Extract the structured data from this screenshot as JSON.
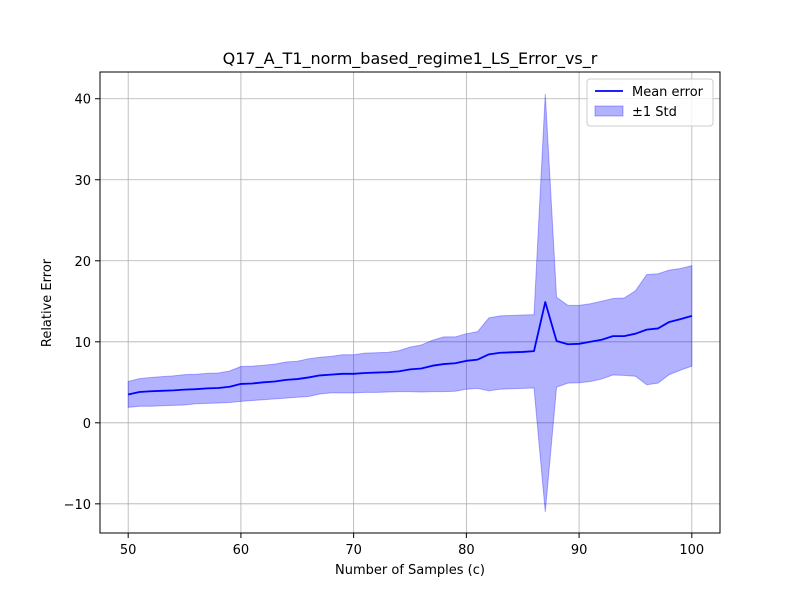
{
  "chart_data": {
    "type": "line",
    "title": "Q17_A_T1_norm_based_regime1_LS_Error_vs_r",
    "xlabel": "Number of Samples (c)",
    "ylabel": "Relative Error",
    "xlim": [
      47.5,
      102.5
    ],
    "ylim": [
      -13.6,
      43.3
    ],
    "xticks": [
      50,
      60,
      70,
      80,
      90,
      100
    ],
    "yticks": [
      -10,
      0,
      10,
      20,
      30,
      40
    ],
    "xtick_labels": [
      "50",
      "60",
      "70",
      "80",
      "90",
      "100"
    ],
    "ytick_labels": [
      "−10",
      "0",
      "10",
      "20",
      "30",
      "40"
    ],
    "grid": true,
    "legend_position": "top-right",
    "x": [
      50,
      51,
      52,
      53,
      54,
      55,
      56,
      57,
      58,
      59,
      60,
      61,
      62,
      63,
      64,
      65,
      66,
      67,
      68,
      69,
      70,
      71,
      72,
      73,
      74,
      75,
      76,
      77,
      78,
      79,
      80,
      81,
      82,
      83,
      84,
      85,
      86,
      87,
      88,
      89,
      90,
      91,
      92,
      93,
      94,
      95,
      96,
      97,
      98,
      99,
      100
    ],
    "series": [
      {
        "name": "Mean error",
        "kind": "line",
        "color": "#0000ff",
        "values": [
          3.5,
          3.8,
          3.9,
          3.95,
          4.0,
          4.1,
          4.15,
          4.25,
          4.3,
          4.45,
          4.8,
          4.85,
          5.0,
          5.1,
          5.3,
          5.4,
          5.6,
          5.85,
          5.95,
          6.05,
          6.05,
          6.15,
          6.2,
          6.25,
          6.35,
          6.6,
          6.7,
          7.05,
          7.25,
          7.35,
          7.65,
          7.8,
          8.45,
          8.65,
          8.7,
          8.75,
          8.85,
          14.9,
          10.1,
          9.7,
          9.75,
          10.0,
          10.25,
          10.7,
          10.7,
          11.0,
          11.5,
          11.65,
          12.45,
          12.8,
          13.2
        ]
      },
      {
        "name": "±1 Std",
        "kind": "band",
        "color": "#0000ff",
        "lower": [
          1.9,
          2.05,
          2.05,
          2.1,
          2.15,
          2.2,
          2.35,
          2.4,
          2.45,
          2.5,
          2.65,
          2.75,
          2.85,
          2.95,
          3.05,
          3.15,
          3.25,
          3.55,
          3.7,
          3.7,
          3.7,
          3.75,
          3.75,
          3.8,
          3.85,
          3.85,
          3.8,
          3.85,
          3.85,
          3.9,
          4.15,
          4.25,
          3.95,
          4.15,
          4.2,
          4.25,
          4.3,
          -11.0,
          4.4,
          4.9,
          4.95,
          5.1,
          5.4,
          5.9,
          5.85,
          5.75,
          4.7,
          4.9,
          5.95,
          6.5,
          7.0
        ],
        "upper": [
          5.1,
          5.45,
          5.6,
          5.7,
          5.8,
          5.95,
          6.0,
          6.1,
          6.15,
          6.4,
          6.95,
          7.0,
          7.1,
          7.25,
          7.5,
          7.6,
          7.9,
          8.1,
          8.2,
          8.4,
          8.4,
          8.6,
          8.65,
          8.7,
          8.9,
          9.35,
          9.6,
          10.2,
          10.6,
          10.6,
          11.0,
          11.25,
          12.95,
          13.2,
          13.25,
          13.3,
          13.35,
          40.6,
          15.5,
          14.5,
          14.5,
          14.7,
          15.0,
          15.35,
          15.4,
          16.3,
          18.3,
          18.4,
          18.85,
          19.05,
          19.4
        ]
      }
    ]
  }
}
